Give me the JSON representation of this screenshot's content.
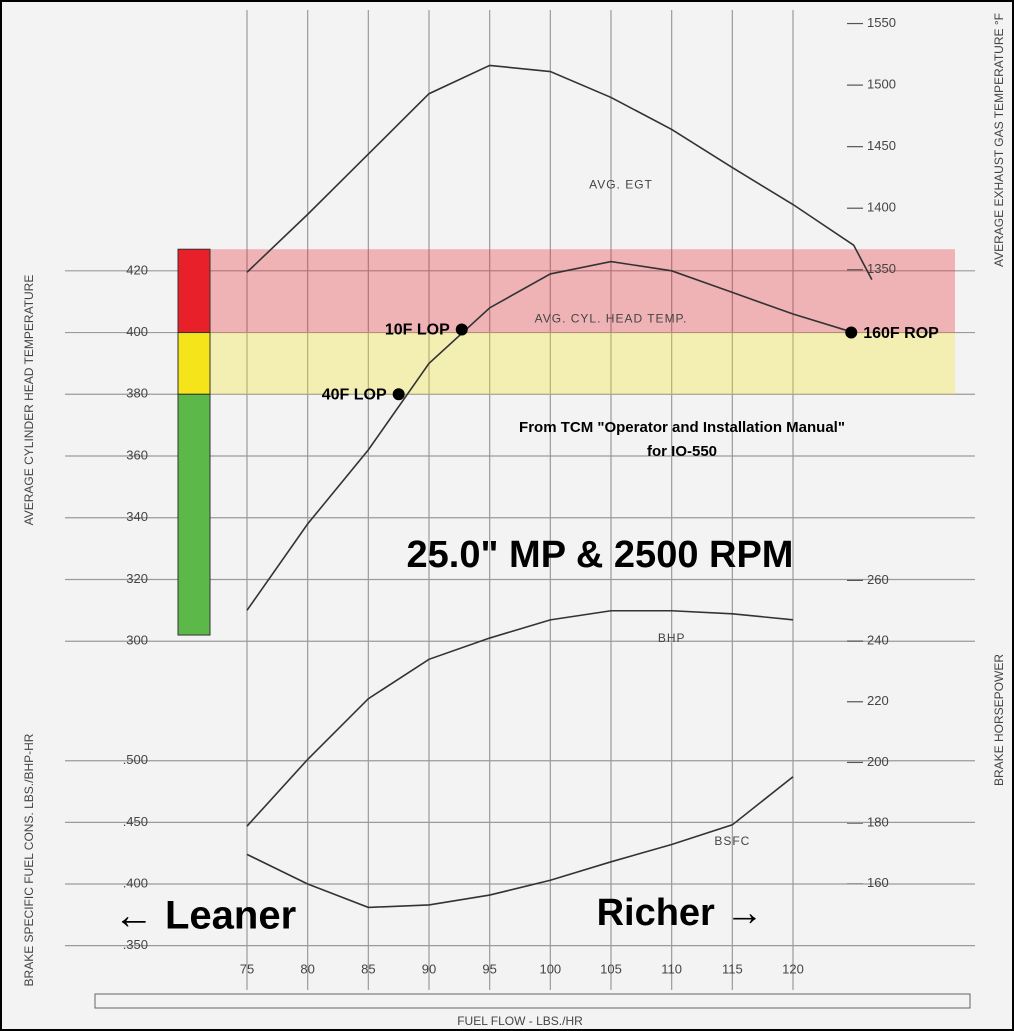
{
  "chart_data": [
    {
      "type": "line",
      "title": "25.0\" MP & 2500 RPM",
      "xlabel": "FUEL FLOW - LBS./HR",
      "ylabel": "AVERAGE CYLINDER HEAD TEMPERATURE",
      "xlim": [
        60,
        135
      ],
      "xticks": [
        75,
        80,
        85,
        90,
        95,
        100,
        105,
        110,
        115,
        120
      ],
      "ylim": [
        187,
        504.5
      ],
      "yticks": [
        300,
        320,
        340,
        360,
        380,
        400,
        420
      ],
      "grid": true,
      "x": [
        75,
        80,
        85,
        90,
        95,
        100,
        105,
        110,
        115,
        120,
        125
      ],
      "series": [
        {
          "name": "AVG. CYL. HEAD TEMP.",
          "color": "#333333",
          "values": [
            310,
            338,
            362,
            390,
            408,
            419,
            423,
            420,
            413,
            406,
            400
          ]
        }
      ],
      "points": [
        {
          "label": "40F LOP",
          "x": 87.5,
          "y": 380
        },
        {
          "label": "10F LOP",
          "x": 92.7,
          "y": 401
        },
        {
          "label": "160F ROP",
          "x": 124.8,
          "y": 400
        }
      ],
      "bands": [
        {
          "from": 400,
          "to": 427,
          "color": "#e8202a"
        },
        {
          "from": 380,
          "to": 400,
          "color": "#f5e41a"
        },
        {
          "from": 302,
          "to": 380,
          "color": "#5cb848"
        }
      ],
      "annotations": [
        "← Leaner",
        "Richer →",
        "From TCM \"Operator and Installation Manual\"",
        "for IO-550"
      ]
    },
    {
      "type": "line",
      "ylabel": "AVERAGE EXHAUST GAS TEMPERATURE °F",
      "xlim": [
        60,
        135
      ],
      "ylim": [
        765,
        1561
      ],
      "yticks": [
        1350,
        1400,
        1450,
        1500,
        1550
      ],
      "x": [
        75,
        80,
        85,
        90,
        95,
        100,
        105,
        110,
        115,
        120,
        125,
        126.5
      ],
      "series": [
        {
          "name": "AVG. EGT",
          "color": "#333333",
          "values": [
            1348,
            1395,
            1444,
            1493,
            1516,
            1511,
            1490,
            1464,
            1433,
            1403,
            1370,
            1342
          ]
        }
      ]
    },
    {
      "type": "line",
      "ylabel": "BRAKE HORSEPOWER",
      "xlim": [
        60,
        135
      ],
      "ylim": [
        125,
        448
      ],
      "yticks": [
        160,
        180,
        200,
        220,
        240,
        260
      ],
      "x": [
        75,
        80,
        85,
        90,
        95,
        100,
        105,
        110,
        115,
        120
      ],
      "series": [
        {
          "name": "BHP",
          "color": "#333333",
          "values": [
            179,
            201,
            221,
            234,
            241,
            247,
            250,
            250,
            249,
            247
          ]
        }
      ]
    },
    {
      "type": "line",
      "ylabel": "BRAKE SPECIFIC FUEL CONS. LBS./BHP-HR",
      "xlim": [
        60,
        135
      ],
      "ylim": [
        0.314,
        1.109
      ],
      "grid": true,
      "yticks": [
        {
          "value": 0.35,
          "label": ".350"
        },
        {
          "value": 0.4,
          "label": ".400"
        },
        {
          "value": 0.45,
          "label": ".450"
        },
        {
          "value": 0.5,
          "label": ".500"
        }
      ],
      "x": [
        75,
        80,
        85,
        90,
        95,
        100,
        105,
        110,
        115,
        120
      ],
      "series": [
        {
          "name": "BSFC",
          "color": "#333333",
          "values": [
            0.424,
            0.4,
            0.381,
            0.383,
            0.391,
            0.403,
            0.418,
            0.432,
            0.448,
            0.487
          ]
        }
      ]
    }
  ]
}
